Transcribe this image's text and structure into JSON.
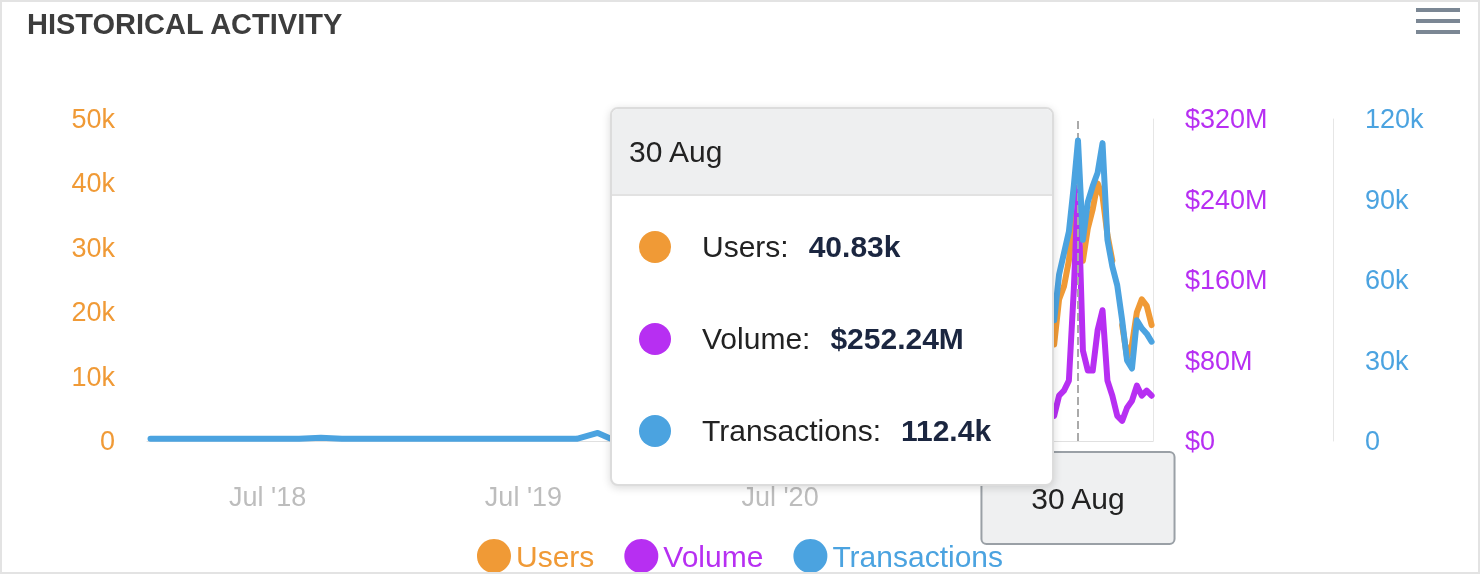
{
  "chart_data": {
    "type": "line",
    "title": "HISTORICAL ACTIVITY",
    "x": [
      "2018-01-15",
      "2018-02-15",
      "2018-03-15",
      "2018-04-15",
      "2018-05-15",
      "2018-06-15",
      "2018-07-15",
      "2018-08-15",
      "2018-09-15",
      "2018-10-15",
      "2018-11-15",
      "2018-12-15",
      "2019-01-15",
      "2019-02-15",
      "2019-03-15",
      "2019-04-15",
      "2019-05-15",
      "2019-06-15",
      "2019-07-15",
      "2019-08-15",
      "2019-09-15",
      "2019-10-15",
      "2019-11-01",
      "2020-06-01",
      "2021-07-20",
      "2021-07-27",
      "2021-08-03",
      "2021-08-10",
      "2021-08-17",
      "2021-08-24",
      "2021-08-30",
      "2021-09-06",
      "2021-09-13",
      "2021-09-20",
      "2021-09-27",
      "2021-10-04",
      "2021-10-11",
      "2021-10-18",
      "2021-10-25",
      "2021-11-01",
      "2021-11-08",
      "2021-11-15",
      "2021-11-22",
      "2021-11-29",
      "2021-12-06",
      "2021-12-13"
    ],
    "series": [
      {
        "name": "Users",
        "color": "#f09a36",
        "values": [
          null,
          null,
          null,
          null,
          null,
          null,
          null,
          null,
          null,
          null,
          null,
          null,
          null,
          null,
          null,
          null,
          null,
          null,
          null,
          null,
          null,
          null,
          null,
          null,
          null,
          15000,
          22000,
          24000,
          28000,
          35000,
          null,
          28000,
          33000,
          36000,
          40000,
          38000,
          32000,
          28000,
          null,
          18000,
          13000,
          15000,
          20000,
          22000,
          21000,
          18000
        ]
      },
      {
        "name": "Volume",
        "color": "#b72ff2",
        "axis": "y2",
        "values": [
          null,
          null,
          null,
          null,
          null,
          null,
          null,
          null,
          null,
          null,
          null,
          null,
          null,
          null,
          null,
          null,
          null,
          null,
          null,
          null,
          null,
          null,
          null,
          null,
          null,
          25000000,
          45000000,
          50000000,
          60000000,
          150000000,
          252000000,
          90000000,
          70000000,
          70000000,
          110000000,
          130000000,
          60000000,
          45000000,
          25000000,
          20000000,
          33000000,
          40000000,
          55000000,
          45000000,
          50000000,
          45000000
        ]
      },
      {
        "name": "Transactions",
        "color": "#4ba3e0",
        "axis": "y3",
        "values": [
          800,
          800,
          800,
          800,
          800,
          800,
          800,
          800,
          1200,
          800,
          800,
          800,
          800,
          800,
          800,
          800,
          800,
          800,
          800,
          800,
          800,
          3000,
          1000,
          null,
          null,
          45000,
          62000,
          70000,
          78000,
          95000,
          112000,
          75000,
          89000,
          95000,
          100000,
          111000,
          75000,
          65000,
          58000,
          45000,
          30000,
          27000,
          45000,
          42000,
          40000,
          37000
        ]
      }
    ],
    "xlim": [
      "2018-01-10",
      "2021-12-15"
    ],
    "xticks": [
      {
        "value": "2018-07-01",
        "label": "Jul '18"
      },
      {
        "value": "2019-07-01",
        "label": "Jul '19"
      },
      {
        "value": "2020-07-01",
        "label": "Jul '20"
      }
    ],
    "ylim": [
      0,
      50000
    ],
    "yticks": [
      {
        "value": 0,
        "label": "0"
      },
      {
        "value": 10000,
        "label": "10k"
      },
      {
        "value": 20000,
        "label": "20k"
      },
      {
        "value": 30000,
        "label": "30k"
      },
      {
        "value": 40000,
        "label": "40k"
      },
      {
        "value": 50000,
        "label": "50k"
      }
    ],
    "y2lim": [
      0,
      320000000
    ],
    "y2ticks": [
      {
        "value": 0,
        "label": "$0"
      },
      {
        "value": 80000000,
        "label": "$80M"
      },
      {
        "value": 160000000,
        "label": "$160M"
      },
      {
        "value": 240000000,
        "label": "$240M"
      },
      {
        "value": 320000000,
        "label": "$320M"
      }
    ],
    "y3lim": [
      0,
      120000
    ],
    "y3ticks": [
      {
        "value": 0,
        "label": "0"
      },
      {
        "value": 30000,
        "label": "30k"
      },
      {
        "value": 60000,
        "label": "60k"
      },
      {
        "value": 90000,
        "label": "90k"
      },
      {
        "value": 120000,
        "label": "120k"
      }
    ],
    "ref_lines": [
      {
        "axis": "x",
        "value": "2021-08-30",
        "label": "30 Aug",
        "line_style": "dashed",
        "color": "#aaaaaa"
      }
    ],
    "annotations": [
      "30 Aug",
      "Users: 40.83k",
      "Volume: $252.24M",
      "Transactions: 112.4k"
    ],
    "legend": "bottom",
    "marker": "none",
    "line_style": "solid"
  }
}
